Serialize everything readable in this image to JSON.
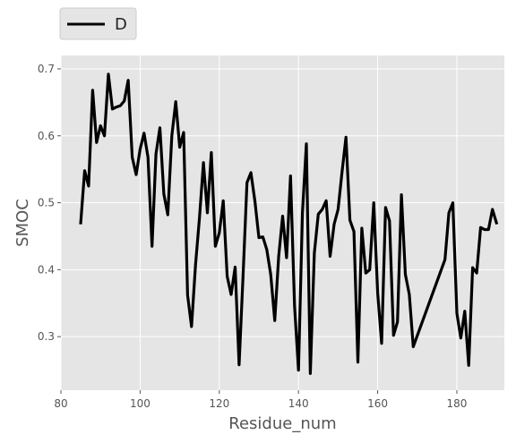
{
  "chart_data": {
    "type": "line",
    "xlabel": "Residue_num",
    "ylabel": "SMOC",
    "xlim": [
      80,
      192
    ],
    "ylim": [
      0.22,
      0.72
    ],
    "x_ticks": [
      80,
      100,
      120,
      140,
      160,
      180
    ],
    "y_ticks": [
      0.3,
      0.4,
      0.5,
      0.6,
      0.7
    ],
    "grid": true,
    "legend_position": "above-left",
    "background_color": "#e5e5e5",
    "grid_color": "#ffffff",
    "series": [
      {
        "name": "D",
        "color": "#000000",
        "x": [
          85,
          86,
          87,
          88,
          89,
          90,
          91,
          92,
          93,
          94,
          95,
          96,
          97,
          98,
          99,
          100,
          101,
          102,
          103,
          104,
          105,
          106,
          107,
          108,
          109,
          110,
          111,
          112,
          113,
          114,
          115,
          116,
          117,
          118,
          119,
          120,
          121,
          122,
          123,
          124,
          125,
          126,
          127,
          128,
          129,
          130,
          131,
          132,
          133,
          134,
          135,
          136,
          137,
          138,
          139,
          140,
          141,
          142,
          143,
          144,
          145,
          146,
          147,
          148,
          149,
          150,
          151,
          152,
          153,
          154,
          155,
          156,
          157,
          158,
          159,
          160,
          161,
          162,
          163,
          164,
          165,
          166,
          167,
          168,
          169,
          177,
          178,
          179,
          180,
          181,
          182,
          183,
          184,
          185,
          186,
          187,
          188,
          189,
          190
        ],
        "y": [
          0.47,
          0.548,
          0.525,
          0.668,
          0.59,
          0.615,
          0.6,
          0.692,
          0.64,
          0.643,
          0.645,
          0.652,
          0.683,
          0.568,
          0.542,
          0.58,
          0.604,
          0.568,
          0.435,
          0.573,
          0.612,
          0.513,
          0.482,
          0.6,
          0.651,
          0.583,
          0.605,
          0.362,
          0.315,
          0.408,
          0.478,
          0.56,
          0.485,
          0.575,
          0.435,
          0.455,
          0.503,
          0.39,
          0.363,
          0.404,
          0.258,
          0.39,
          0.53,
          0.545,
          0.502,
          0.448,
          0.449,
          0.43,
          0.393,
          0.324,
          0.42,
          0.48,
          0.418,
          0.54,
          0.346,
          0.25,
          0.485,
          0.588,
          0.245,
          0.425,
          0.483,
          0.49,
          0.503,
          0.42,
          0.468,
          0.49,
          0.546,
          0.598,
          0.474,
          0.457,
          0.262,
          0.462,
          0.395,
          0.4,
          0.5,
          0.365,
          0.29,
          0.493,
          0.473,
          0.302,
          0.322,
          0.512,
          0.393,
          0.363,
          0.285,
          0.415,
          0.485,
          0.5,
          0.335,
          0.298,
          0.338,
          0.257,
          0.403,
          0.395,
          0.463,
          0.46,
          0.46,
          0.49,
          0.47
        ]
      }
    ]
  }
}
